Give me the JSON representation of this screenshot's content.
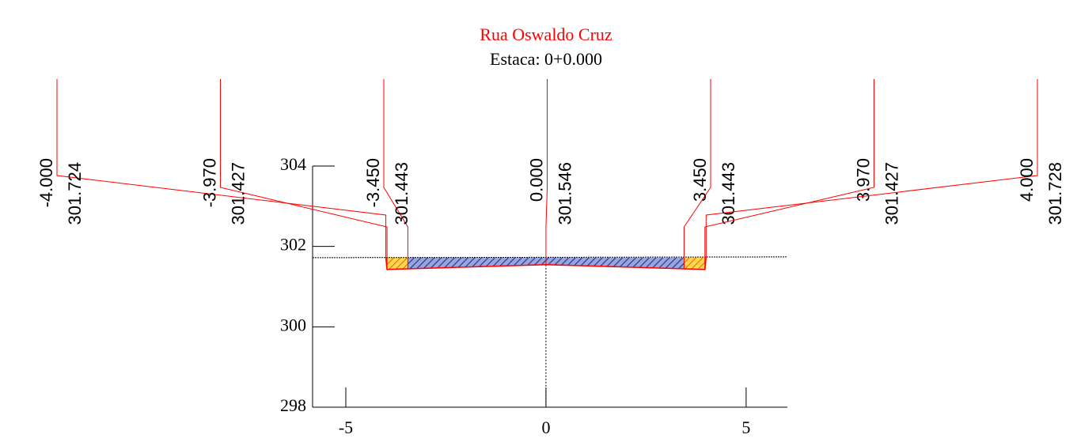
{
  "chart_data": {
    "type": "cross-section",
    "title": "Rua Oswaldo Cruz",
    "subtitle": "Estaca: 0+0.000",
    "x": [
      -4,
      -3.97,
      -3.45,
      0,
      3.45,
      3.97,
      4
    ],
    "x_labels": [
      "-4.000",
      "-3.970",
      "-3.450",
      "0.000",
      "3.450",
      "3.970",
      "4.000"
    ],
    "values": [
      301.724,
      301.427,
      301.443,
      301.546,
      301.443,
      301.427,
      301.728
    ],
    "ground": {
      "x": [
        -5.83,
        6.03
      ],
      "values": [
        301.72,
        301.74
      ]
    },
    "color": "#ff0000",
    "xlim": [
      -5.83,
      6.03
    ],
    "ylim": [
      298,
      304
    ],
    "xticks": [
      -5,
      0,
      5
    ],
    "yticks": [
      298,
      300,
      302,
      304
    ]
  }
}
